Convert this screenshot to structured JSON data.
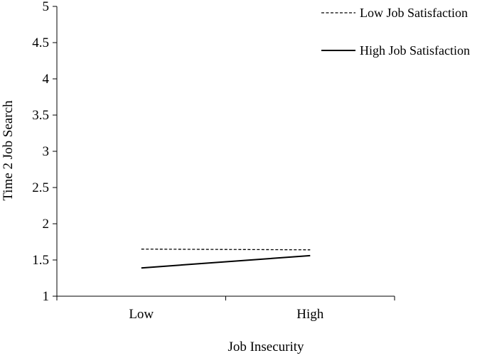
{
  "chart_data": {
    "type": "line",
    "title": "",
    "xlabel": "Job Insecurity",
    "ylabel": "Time 2 Job Search",
    "categories": [
      "Low",
      "High"
    ],
    "ylim": [
      1,
      5
    ],
    "yticks": [
      "1",
      "1.5",
      "2",
      "2.5",
      "3",
      "3.5",
      "4",
      "4.5",
      "5"
    ],
    "grid": false,
    "legend_position": "top-right",
    "series": [
      {
        "name": "Low Job Satisfaction",
        "values": [
          1.65,
          1.64
        ],
        "line_style": "dashed",
        "color": "#000000"
      },
      {
        "name": "High Job Satisfaction",
        "values": [
          1.39,
          1.56
        ],
        "line_style": "solid",
        "color": "#000000"
      }
    ]
  }
}
